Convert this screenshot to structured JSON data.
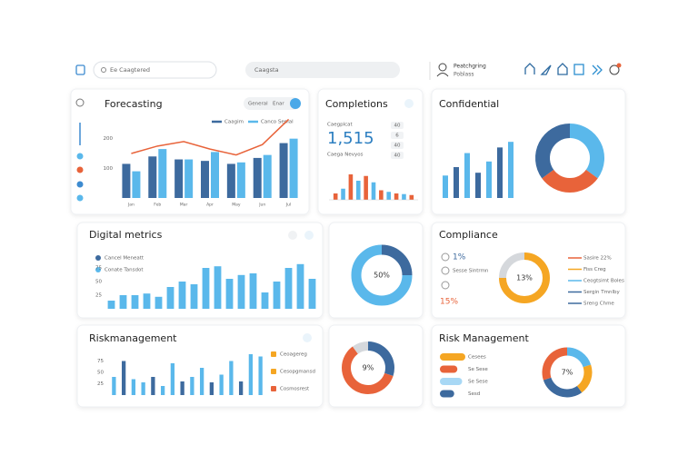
{
  "header": {
    "search": "Ee Caagtered",
    "center_search": "Caagsta",
    "user": [
      "Peatchgring",
      "Poblass"
    ]
  },
  "forecasting": {
    "title": "Forecasting",
    "tabs": [
      "General",
      "Enar"
    ],
    "series": [
      {
        "name": "Caagim",
        "color": "#3d6a9e",
        "values": [
          115,
          140,
          130,
          125,
          115,
          135,
          185
        ]
      },
      {
        "name": "Canco Sepial",
        "color": "#5ab8eb",
        "values": [
          90,
          165,
          130,
          155,
          120,
          145,
          200
        ]
      }
    ],
    "line": {
      "color": "#e8633a",
      "values": [
        150,
        175,
        190,
        165,
        145,
        180,
        265
      ]
    },
    "categories": [
      "Jan",
      "Feb",
      "Mar",
      "Apr",
      "May",
      "Jun",
      "Jul"
    ],
    "ylim": [
      0,
      300
    ],
    "yticks": [
      100,
      200
    ]
  },
  "completions": {
    "title": "Completions",
    "caption": "Caegplcat",
    "value": "1,515",
    "subcaption": "Caega Nevyos",
    "stats": [
      "40",
      "6",
      "40",
      "40"
    ],
    "values": [
      20,
      35,
      80,
      60,
      75,
      55,
      30,
      25,
      20,
      18,
      15
    ],
    "colors": [
      "#e8633a",
      "#5ab8eb"
    ],
    "ylim": [
      0,
      100
    ]
  },
  "confidential": {
    "title": "Confidential",
    "values": [
      40,
      55,
      80,
      45,
      65,
      90,
      100
    ],
    "colors": [
      "#5ab8eb",
      "#3d6a9e"
    ],
    "ylim": [
      0,
      110
    ],
    "donut": {
      "values": [
        35,
        30,
        35
      ],
      "colors": [
        "#5ab8eb",
        "#e8633a",
        "#3d6a9e"
      ]
    }
  },
  "digital": {
    "title": "Digital metrics",
    "legend": [
      {
        "name": "Cancel Meneatt",
        "color": "#3d6a9e"
      },
      {
        "name": "Conate Tansdot",
        "color": "#5ab8eb"
      }
    ],
    "values": [
      15,
      25,
      25,
      28,
      22,
      40,
      50,
      45,
      75,
      78,
      55,
      62,
      65,
      30,
      50,
      75,
      82,
      55
    ],
    "color": "#5ab8eb",
    "ylim": [
      0,
      100
    ],
    "yticks": [
      25,
      50,
      75
    ]
  },
  "donut_a": {
    "label": "50%",
    "values": [
      25,
      75
    ],
    "colors": [
      "#3d6a9e",
      "#5ab8eb"
    ]
  },
  "compliance": {
    "title": "Compliance",
    "stat": "1%",
    "note": "Sesse Sintrmn",
    "highlight": "15%",
    "donut": {
      "label": "13%",
      "values": [
        75,
        25
      ],
      "colors": [
        "#f5a623",
        "#d5d8dc"
      ]
    },
    "legend": [
      {
        "name": "Sasire 22%",
        "color": "#e8633a"
      },
      {
        "name": "Fiss Creg",
        "color": "#f5a623"
      },
      {
        "name": "Ceogtsimt Boles",
        "color": "#5ab8eb"
      },
      {
        "name": "Sergin Tmnlby",
        "color": "#3d6a9e"
      },
      {
        "name": "Sreng Chme",
        "color": "#3d6a9e"
      }
    ]
  },
  "risk_a": {
    "title": "Riskmanagement",
    "values": [
      40,
      75,
      35,
      28,
      40,
      20,
      70,
      30,
      40,
      60,
      28,
      45,
      75,
      30,
      90,
      85
    ],
    "colors": [
      "#5ab8eb",
      "#3d6a9e",
      "#5ab8eb"
    ],
    "ylim": [
      0,
      100
    ],
    "yticks": [
      25,
      50,
      75
    ],
    "legend": [
      {
        "name": "Ceoagereg",
        "color": "#f5a623"
      },
      {
        "name": "Cesopgmansd",
        "color": "#f5a623"
      },
      {
        "name": "Cosmosrest",
        "color": "#e8633a"
      }
    ]
  },
  "donut_b": {
    "label": "9%",
    "values": [
      30,
      60,
      10
    ],
    "colors": [
      "#3d6a9e",
      "#e8633a",
      "#d5d8dc"
    ]
  },
  "risk_b": {
    "title": "Risk Management",
    "items": [
      {
        "name": "Cesees",
        "color": "#f5a623",
        "value": 80
      },
      {
        "name": "Se Sese",
        "color": "#e8633a",
        "value": 55
      },
      {
        "name": "Se Sese",
        "color": "#a8d8f5",
        "value": 70
      },
      {
        "name": "Sesd",
        "color": "#3d6a9e",
        "value": 45
      }
    ],
    "donut": {
      "label": "7%",
      "values": [
        20,
        20,
        30,
        30
      ],
      "colors": [
        "#5ab8eb",
        "#f5a623",
        "#3d6a9e",
        "#e8633a"
      ]
    }
  }
}
